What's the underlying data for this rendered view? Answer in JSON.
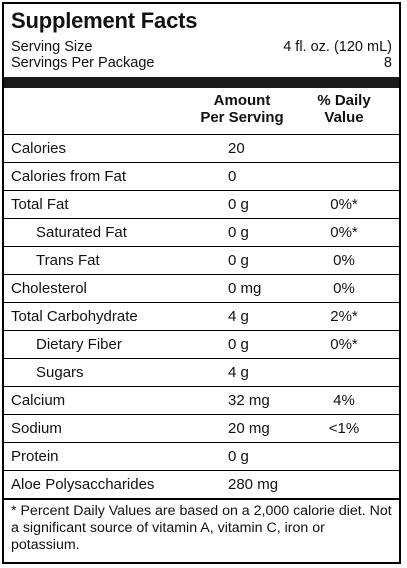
{
  "title": "Supplement Facts",
  "serving_size_label": "Serving Size",
  "serving_size_value": "4 fl. oz. (120 mL)",
  "servings_per_package_label": "Servings Per Package",
  "servings_per_package_value": "8",
  "header": {
    "amount": "Amount",
    "per_serving": "Per Serving",
    "pct_daily": "% Daily",
    "value": "Value"
  },
  "rows": [
    {
      "name": "Calories",
      "amount": "20",
      "dv": ""
    },
    {
      "name": "Calories from Fat",
      "amount": "0",
      "dv": ""
    },
    {
      "name": "Total Fat",
      "amount": "0 g",
      "dv": "0%*"
    },
    {
      "name": "Saturated Fat",
      "amount": "0 g",
      "dv": "0%*"
    },
    {
      "name": "Trans Fat",
      "amount": "0 g",
      "dv": "0%"
    },
    {
      "name": "Cholesterol",
      "amount": "0 mg",
      "dv": "0%"
    },
    {
      "name": "Total Carbohydrate",
      "amount": "4 g",
      "dv": "2%*"
    },
    {
      "name": "Dietary Fiber",
      "amount": "0 g",
      "dv": "0%*"
    },
    {
      "name": "Sugars",
      "amount": "4 g",
      "dv": ""
    },
    {
      "name": "Calcium",
      "amount": "32 mg",
      "dv": "4%"
    },
    {
      "name": "Sodium",
      "amount": "20 mg",
      "dv": "<1%"
    },
    {
      "name": "Protein",
      "amount": "0 g",
      "dv": ""
    },
    {
      "name": "Aloe Polysaccharides",
      "amount": "280 mg",
      "dv": ""
    }
  ],
  "footnote": "* Percent Daily Values are based on a 2,000 calorie diet. Not a significant source of vitamin A, vitamin C, iron or potassium."
}
